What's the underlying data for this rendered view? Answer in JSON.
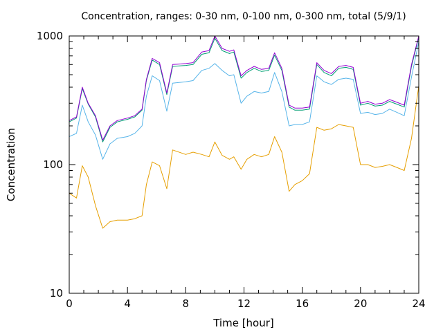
{
  "chart_data": {
    "type": "line",
    "title": "Concentration, ranges: 0-30 nm, 0-100 nm, 0-300 nm, total (5/9/1)",
    "xlabel": "Time [hour]",
    "ylabel": "Concentration",
    "xlim": [
      0,
      24
    ],
    "ylim": [
      10,
      1000
    ],
    "yscale": "log",
    "grid": false,
    "legend": "none",
    "xticks": [
      0,
      4,
      8,
      12,
      16,
      20,
      24
    ],
    "yticks": [
      10,
      100,
      1000
    ],
    "x": [
      0,
      0.5,
      0.9,
      1.3,
      1.8,
      2.3,
      2.8,
      3.3,
      4,
      4.5,
      5,
      5.3,
      5.7,
      6.2,
      6.7,
      7.1,
      8,
      8.5,
      9.1,
      9.6,
      10,
      10.5,
      11,
      11.3,
      11.8,
      12.2,
      12.7,
      13.2,
      13.7,
      14.1,
      14.6,
      15.1,
      15.5,
      16,
      16.5,
      17,
      17.5,
      18,
      18.5,
      19,
      19.5,
      20,
      20.5,
      21,
      21.5,
      22,
      22.5,
      23,
      23.5,
      24
    ],
    "series": [
      {
        "color": "#9400d3",
        "values": [
          220,
          235,
          400,
          300,
          240,
          155,
          200,
          220,
          230,
          240,
          270,
          460,
          670,
          620,
          360,
          600,
          610,
          620,
          750,
          770,
          1000,
          800,
          760,
          780,
          490,
          540,
          580,
          550,
          560,
          740,
          560,
          290,
          275,
          275,
          280,
          620,
          540,
          510,
          580,
          590,
          570,
          300,
          310,
          295,
          300,
          320,
          305,
          290,
          600,
          1000
        ]
      },
      {
        "color": "#009e73",
        "values": [
          215,
          230,
          390,
          295,
          235,
          150,
          195,
          215,
          225,
          235,
          265,
          450,
          650,
          600,
          350,
          580,
          590,
          600,
          720,
          740,
          960,
          770,
          730,
          750,
          470,
          520,
          560,
          530,
          540,
          710,
          540,
          280,
          265,
          265,
          270,
          600,
          520,
          490,
          560,
          570,
          550,
          290,
          300,
          285,
          290,
          310,
          295,
          280,
          580,
          980
        ]
      },
      {
        "color": "#56b4e9",
        "values": [
          165,
          175,
          290,
          215,
          170,
          110,
          145,
          160,
          165,
          175,
          200,
          340,
          490,
          450,
          260,
          430,
          440,
          450,
          540,
          560,
          610,
          540,
          490,
          500,
          300,
          340,
          370,
          360,
          370,
          520,
          370,
          200,
          205,
          205,
          215,
          490,
          440,
          420,
          460,
          470,
          460,
          250,
          255,
          245,
          250,
          270,
          255,
          240,
          480,
          900
        ]
      },
      {
        "color": "#e69f00",
        "values": [
          60,
          55,
          98,
          80,
          48,
          32,
          36,
          37,
          37,
          38,
          40,
          70,
          105,
          98,
          65,
          130,
          120,
          125,
          120,
          115,
          150,
          118,
          110,
          115,
          92,
          110,
          120,
          115,
          120,
          165,
          125,
          62,
          70,
          75,
          85,
          195,
          185,
          190,
          205,
          200,
          195,
          100,
          100,
          95,
          97,
          100,
          95,
          90,
          160,
          410
        ]
      }
    ]
  }
}
